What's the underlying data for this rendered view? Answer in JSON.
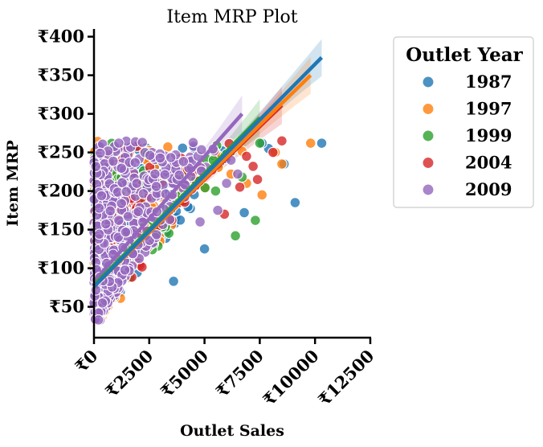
{
  "chart_data": {
    "type": "scatter",
    "title": "Item MRP Plot",
    "xlabel": "Outlet Sales",
    "ylabel": "Item MRP",
    "xlim": [
      0,
      12500
    ],
    "ylim": [
      10,
      410
    ],
    "x_ticks": [
      0,
      2500,
      5000,
      7500,
      10000,
      12500
    ],
    "y_ticks": [
      50,
      100,
      150,
      200,
      250,
      300,
      350,
      400
    ],
    "x_tick_labels": [
      "₹0",
      "₹2500",
      "₹5000",
      "₹7500",
      "₹10000",
      "₹12500"
    ],
    "y_tick_labels": [
      "₹50",
      "₹100",
      "₹150",
      "₹200",
      "₹250",
      "₹300",
      "₹350",
      "₹400"
    ],
    "grid": false,
    "legend": {
      "title": "Outlet Year",
      "placement": "outside-right"
    },
    "series": [
      {
        "name": "1987",
        "color": "#1f77b4",
        "regression": {
          "x": [
            0,
            10300
          ],
          "y": [
            76,
            373
          ]
        },
        "outliers": [
          [
            10300,
            262
          ],
          [
            9100,
            185
          ],
          [
            8600,
            235
          ],
          [
            7900,
            255
          ],
          [
            7600,
            262
          ],
          [
            6800,
            172
          ],
          [
            3600,
            83
          ],
          [
            5000,
            125
          ],
          [
            6000,
            248
          ]
        ]
      },
      {
        "name": "1997",
        "color": "#ff7f0e",
        "regression": {
          "x": [
            0,
            9800
          ],
          "y": [
            76,
            350
          ]
        },
        "outliers": [
          [
            9800,
            262
          ],
          [
            8500,
            235
          ],
          [
            7600,
            195
          ],
          [
            8200,
            250
          ],
          [
            6200,
            222
          ],
          [
            1200,
            61
          ],
          [
            6900,
            210
          ]
        ]
      },
      {
        "name": "1999",
        "color": "#2ca02c",
        "regression": {
          "x": [
            0,
            7500
          ],
          "y": [
            78,
            295
          ]
        },
        "outliers": [
          [
            6400,
            142
          ],
          [
            7300,
            162
          ],
          [
            7500,
            262
          ],
          [
            5500,
            200
          ],
          [
            6700,
            218
          ],
          [
            400,
            98
          ],
          [
            5400,
            240
          ]
        ]
      },
      {
        "name": "2004",
        "color": "#d62728",
        "regression": {
          "x": [
            0,
            8500
          ],
          "y": [
            77,
            311
          ]
        },
        "outliers": [
          [
            8500,
            265
          ],
          [
            8100,
            250
          ],
          [
            7400,
            215
          ],
          [
            7200,
            232
          ],
          [
            6600,
            205
          ],
          [
            5900,
            170
          ],
          [
            6900,
            245
          ]
        ]
      },
      {
        "name": "2009",
        "color": "#9467bd",
        "regression": {
          "x": [
            0,
            6700
          ],
          "y": [
            83,
            300
          ]
        },
        "outliers": [
          [
            6500,
            222
          ],
          [
            6200,
            240
          ],
          [
            5600,
            175
          ],
          [
            4800,
            160
          ],
          [
            200,
            33
          ],
          [
            6000,
            210
          ]
        ]
      }
    ]
  }
}
